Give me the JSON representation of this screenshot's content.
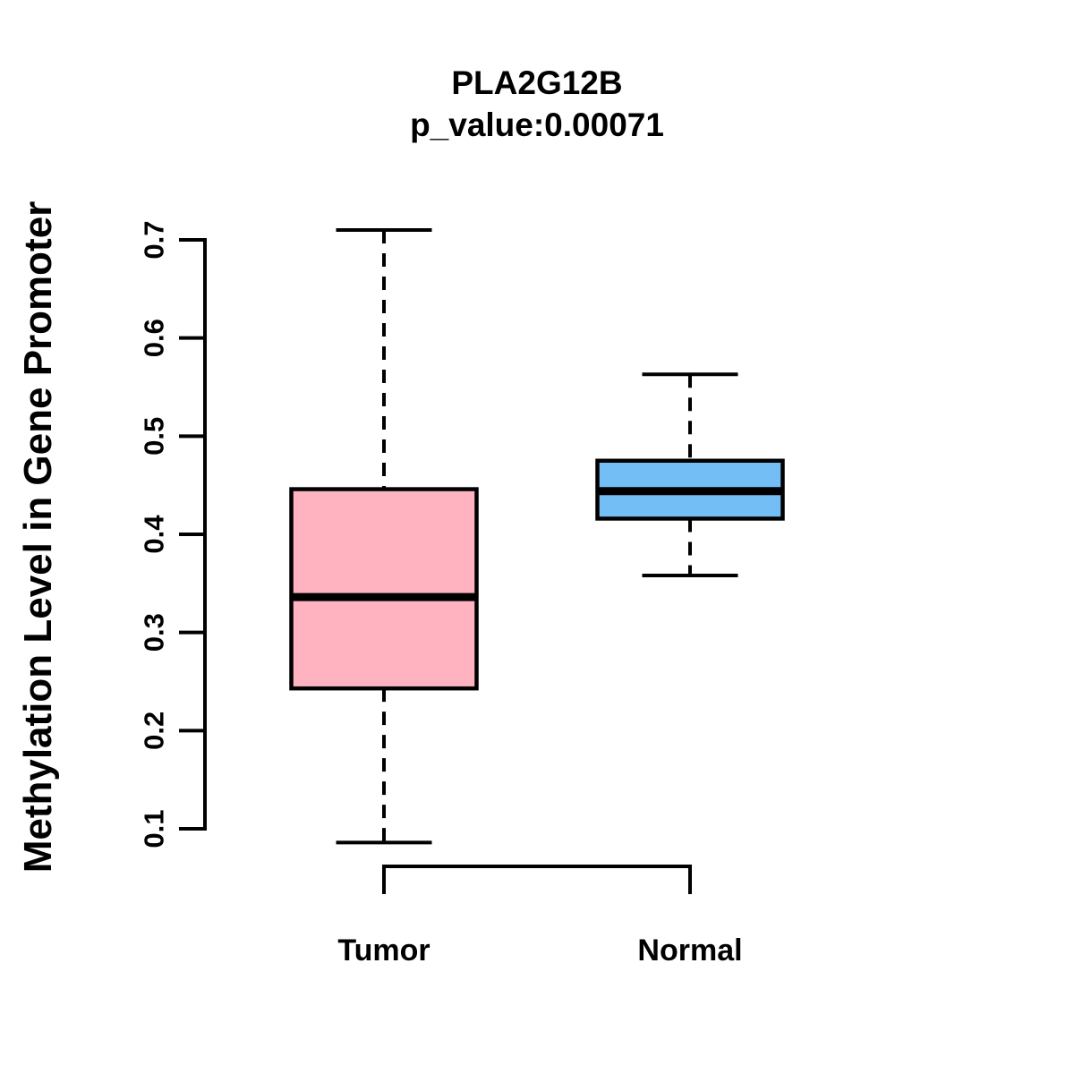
{
  "chart_data": {
    "type": "boxplot",
    "title": "PLA2G12B",
    "subtitle": "p_value:0.00071",
    "ylabel": "Methylation Level in Gene Promoter",
    "ylim": [
      0.1,
      0.7
    ],
    "yticks": [
      0.1,
      0.2,
      0.3,
      0.4,
      0.5,
      0.6,
      0.7
    ],
    "ytick_labels": [
      "0.1",
      "0.2",
      "0.3",
      "0.4",
      "0.5",
      "0.6",
      "0.7"
    ],
    "categories": [
      "Tumor",
      "Normal"
    ],
    "groups": [
      {
        "label": "Tumor",
        "fill_color": "#FFB3C1",
        "whisker_low": 0.086,
        "q1": 0.243,
        "median": 0.336,
        "q3": 0.446,
        "whisker_high": 0.71
      },
      {
        "label": "Normal",
        "fill_color": "#74BEF6",
        "whisker_low": 0.358,
        "q1": 0.416,
        "median": 0.444,
        "q3": 0.475,
        "whisker_high": 0.563
      }
    ],
    "outliers": [],
    "stroke_color": "#000000",
    "background": "#FFFFFF",
    "grid": false,
    "legend": false
  }
}
